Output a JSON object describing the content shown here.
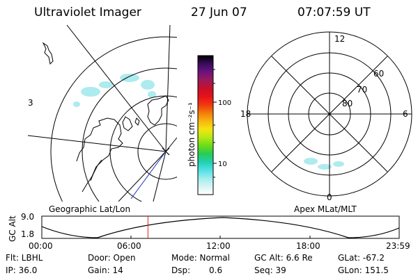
{
  "header": {
    "title": "Ultraviolet Imager",
    "date": "27 Jun 07",
    "time": "07:07:59 UT"
  },
  "left_map": {
    "edge_label": "3",
    "caption": "Geographic Lat/Lon"
  },
  "colorbar": {
    "unit_label": "photon cm⁻²s⁻¹",
    "ticks": [
      "100",
      "10"
    ],
    "colors": [
      "#000000",
      "#3a0b5e",
      "#6a1380",
      "#9a1a5a",
      "#c6102a",
      "#e8101a",
      "#f03810",
      "#f47a0a",
      "#f8b410",
      "#f4e410",
      "#b8e814",
      "#6cdc18",
      "#28cc50",
      "#20d0b0",
      "#50e0e4",
      "#a0ecec",
      "#d8f4f4",
      "#ffffff"
    ]
  },
  "polar_plot": {
    "caption": "Apex MLat/MLT",
    "mlt_labels": {
      "top": "12",
      "left": "18",
      "right": "6",
      "bottom": "0"
    },
    "lat_labels": [
      "60",
      "70",
      "80"
    ]
  },
  "altitude_panel": {
    "ylabel": "GC Alt",
    "y_ticks": [
      "9.0",
      "1.8"
    ],
    "x_ticks": [
      "00:00",
      "06:00",
      "12:00",
      "18:00",
      "23:59"
    ],
    "current_time_fraction": 0.297
  },
  "info": {
    "filter": "Flt: LBHL",
    "door": "Door: Open",
    "mode": "Mode: Normal",
    "gc_alt": "GC Alt: 6.6 Re",
    "glat": "GLat: -67.2",
    "ip": "IP: 36.0",
    "gain": "Gain: 14",
    "dsp_label": "Dsp:",
    "dsp_value": "0.6",
    "seq": "Seq: 39",
    "glon": "GLon: 151.5"
  },
  "colors": {
    "aurora": "#9fe8ec",
    "marker": "#e02020",
    "boresight": "#2030c0"
  }
}
